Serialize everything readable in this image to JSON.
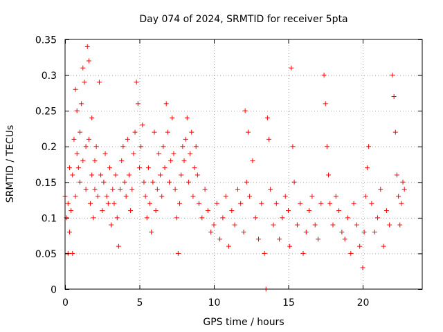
{
  "chart_data": {
    "type": "scatter",
    "title": "Day 074 of 2024, SRMTID for receiver 5pta",
    "xlabel": "GPS time / hours",
    "ylabel": "SRMTID / TECUs",
    "xlim": [
      0,
      24
    ],
    "ylim": [
      0,
      0.35
    ],
    "x_ticks": [
      0,
      5,
      10,
      15,
      20
    ],
    "y_ticks": [
      0,
      0.05,
      0.1,
      0.15,
      0.2,
      0.25,
      0.3,
      0.35
    ],
    "x_tick_labels": [
      "0",
      "5",
      "10",
      "15",
      "20"
    ],
    "y_tick_labels": [
      "0",
      "0.05",
      "0.1",
      "0.15",
      "0.2",
      "0.25",
      "0.3",
      "0.35"
    ],
    "grid": true,
    "marker": "+",
    "color": "#ff0000",
    "series": [
      {
        "name": "SRMTID",
        "x": [
          0.0,
          0.1,
          0.2,
          0.2,
          0.3,
          0.3,
          0.4,
          0.5,
          0.5,
          0.6,
          0.7,
          0.7,
          0.8,
          0.8,
          0.9,
          1.0,
          1.0,
          1.1,
          1.2,
          1.2,
          1.3,
          1.4,
          1.4,
          1.5,
          1.6,
          1.6,
          1.7,
          1.8,
          1.8,
          1.9,
          2.0,
          2.0,
          2.1,
          2.2,
          2.3,
          2.4,
          2.5,
          2.6,
          2.7,
          2.8,
          2.9,
          3.0,
          3.1,
          3.2,
          3.3,
          3.4,
          3.5,
          3.6,
          3.7,
          3.8,
          3.9,
          4.0,
          4.1,
          4.2,
          4.3,
          4.4,
          4.5,
          4.6,
          4.7,
          4.8,
          4.9,
          5.0,
          5.1,
          5.2,
          5.3,
          5.4,
          5.5,
          5.6,
          5.7,
          5.8,
          5.9,
          6.0,
          6.1,
          6.2,
          6.3,
          6.4,
          6.5,
          6.6,
          6.7,
          6.8,
          6.9,
          7.0,
          7.1,
          7.2,
          7.3,
          7.4,
          7.5,
          7.6,
          7.7,
          7.8,
          7.9,
          8.0,
          8.1,
          8.2,
          8.3,
          8.4,
          8.5,
          8.6,
          8.7,
          8.8,
          8.9,
          9.0,
          9.2,
          9.4,
          9.6,
          9.8,
          10.0,
          10.2,
          10.4,
          10.6,
          10.8,
          11.0,
          11.2,
          11.4,
          11.6,
          11.8,
          12.0,
          12.1,
          12.2,
          12.3,
          12.4,
          12.6,
          12.8,
          13.0,
          13.2,
          13.4,
          13.5,
          13.6,
          13.7,
          13.8,
          14.0,
          14.2,
          14.4,
          14.6,
          14.8,
          15.0,
          15.1,
          15.2,
          15.3,
          15.4,
          15.6,
          15.8,
          16.0,
          16.2,
          16.4,
          16.6,
          16.8,
          17.0,
          17.2,
          17.4,
          17.5,
          17.6,
          17.7,
          17.8,
          18.0,
          18.2,
          18.4,
          18.6,
          18.8,
          19.0,
          19.2,
          19.4,
          19.6,
          19.8,
          20.0,
          20.1,
          20.2,
          20.3,
          20.4,
          20.6,
          20.8,
          21.0,
          21.2,
          21.4,
          21.6,
          21.8,
          22.0,
          22.1,
          22.2,
          22.3,
          22.4,
          22.5,
          22.6,
          22.7,
          22.8
        ],
        "y": [
          0.13,
          0.1,
          0.05,
          0.12,
          0.08,
          0.17,
          0.11,
          0.05,
          0.16,
          0.21,
          0.28,
          0.13,
          0.19,
          0.25,
          0.17,
          0.15,
          0.22,
          0.26,
          0.31,
          0.18,
          0.29,
          0.2,
          0.14,
          0.34,
          0.32,
          0.21,
          0.12,
          0.24,
          0.16,
          0.1,
          0.18,
          0.14,
          0.2,
          0.13,
          0.29,
          0.16,
          0.11,
          0.15,
          0.19,
          0.13,
          0.12,
          0.17,
          0.09,
          0.14,
          0.12,
          0.16,
          0.1,
          0.06,
          0.14,
          0.18,
          0.2,
          0.15,
          0.13,
          0.21,
          0.16,
          0.11,
          0.14,
          0.19,
          0.22,
          0.29,
          0.26,
          0.17,
          0.2,
          0.23,
          0.15,
          0.13,
          0.1,
          0.17,
          0.12,
          0.08,
          0.15,
          0.22,
          0.11,
          0.14,
          0.19,
          0.16,
          0.13,
          0.2,
          0.17,
          0.26,
          0.22,
          0.15,
          0.18,
          0.24,
          0.19,
          0.14,
          0.1,
          0.05,
          0.12,
          0.16,
          0.2,
          0.18,
          0.21,
          0.24,
          0.15,
          0.19,
          0.22,
          0.13,
          0.17,
          0.2,
          0.16,
          0.12,
          0.1,
          0.14,
          0.11,
          0.08,
          0.09,
          0.12,
          0.07,
          0.1,
          0.13,
          0.06,
          0.11,
          0.09,
          0.14,
          0.12,
          0.08,
          0.25,
          0.15,
          0.22,
          0.13,
          0.18,
          0.1,
          0.07,
          0.12,
          0.05,
          0.0,
          0.24,
          0.21,
          0.14,
          0.09,
          0.12,
          0.07,
          0.1,
          0.13,
          0.11,
          0.06,
          0.31,
          0.2,
          0.15,
          0.09,
          0.12,
          0.05,
          0.08,
          0.11,
          0.13,
          0.09,
          0.07,
          0.12,
          0.3,
          0.26,
          0.2,
          0.16,
          0.12,
          0.09,
          0.13,
          0.11,
          0.08,
          0.07,
          0.1,
          0.05,
          0.12,
          0.09,
          0.06,
          0.03,
          0.08,
          0.13,
          0.17,
          0.2,
          0.12,
          0.08,
          0.1,
          0.14,
          0.06,
          0.11,
          0.09,
          0.3,
          0.27,
          0.22,
          0.16,
          0.13,
          0.09,
          0.12,
          0.15,
          0.14
        ]
      }
    ]
  }
}
